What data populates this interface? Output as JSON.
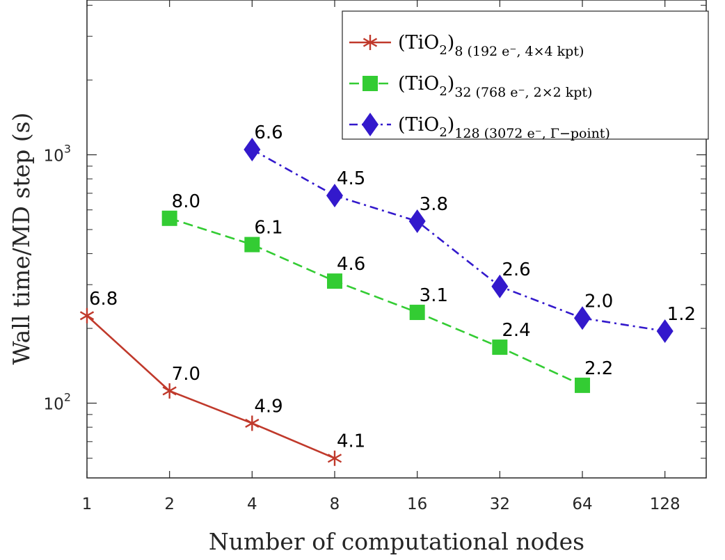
{
  "chart_data": {
    "type": "line",
    "xlabel": "Number of computational nodes",
    "ylabel": "Wall time/MD step (s)",
    "x_scale": "log2",
    "y_scale": "log10",
    "xlim": [
      1,
      181
    ],
    "ylim": [
      50,
      4200
    ],
    "x_ticks": [
      1,
      2,
      4,
      8,
      16,
      32,
      64,
      128
    ],
    "x_tick_labels": [
      "1",
      "2",
      "4",
      "8",
      "16",
      "32",
      "64",
      "128"
    ],
    "y_major_ticks": [
      100,
      1000
    ],
    "y_tick_labels": [
      {
        "base": "10",
        "exp": "2"
      },
      {
        "base": "10",
        "exp": "3"
      }
    ],
    "grid": false,
    "legend_position": "top-right",
    "series": [
      {
        "name_main": "(TiO",
        "name_sub2": "2",
        "name_close": ")",
        "name_subscript": "8 (192 e⁻, 4×4 kpt)",
        "color": "#c0392b",
        "marker": "asterisk",
        "line_style": "solid",
        "x": [
          1,
          2,
          4,
          8
        ],
        "y": [
          225,
          112,
          83,
          60
        ],
        "labels": [
          "6.8",
          "7.0",
          "4.9",
          "4.1"
        ]
      },
      {
        "name_main": "(TiO",
        "name_sub2": "2",
        "name_close": ")",
        "name_subscript": "32 (768 e⁻, 2×2 kpt)",
        "color": "#33cc33",
        "marker": "square",
        "line_style": "dashed",
        "x": [
          2,
          4,
          8,
          16,
          32,
          64
        ],
        "y": [
          555,
          435,
          310,
          232,
          168,
          118
        ],
        "labels": [
          "8.0",
          "6.1",
          "4.6",
          "3.1",
          "2.4",
          "2.2"
        ]
      },
      {
        "name_main": "(TiO",
        "name_sub2": "2",
        "name_close": ")",
        "name_subscript": "128 (3072 e⁻, Γ−point)",
        "color": "#3319cc",
        "marker": "diamond",
        "line_style": "dashdot",
        "x": [
          4,
          8,
          16,
          32,
          64,
          128
        ],
        "y": [
          1050,
          685,
          540,
          295,
          220,
          195
        ],
        "labels": [
          "6.6",
          "4.5",
          "3.8",
          "2.6",
          "2.0",
          "1.2"
        ]
      }
    ]
  }
}
